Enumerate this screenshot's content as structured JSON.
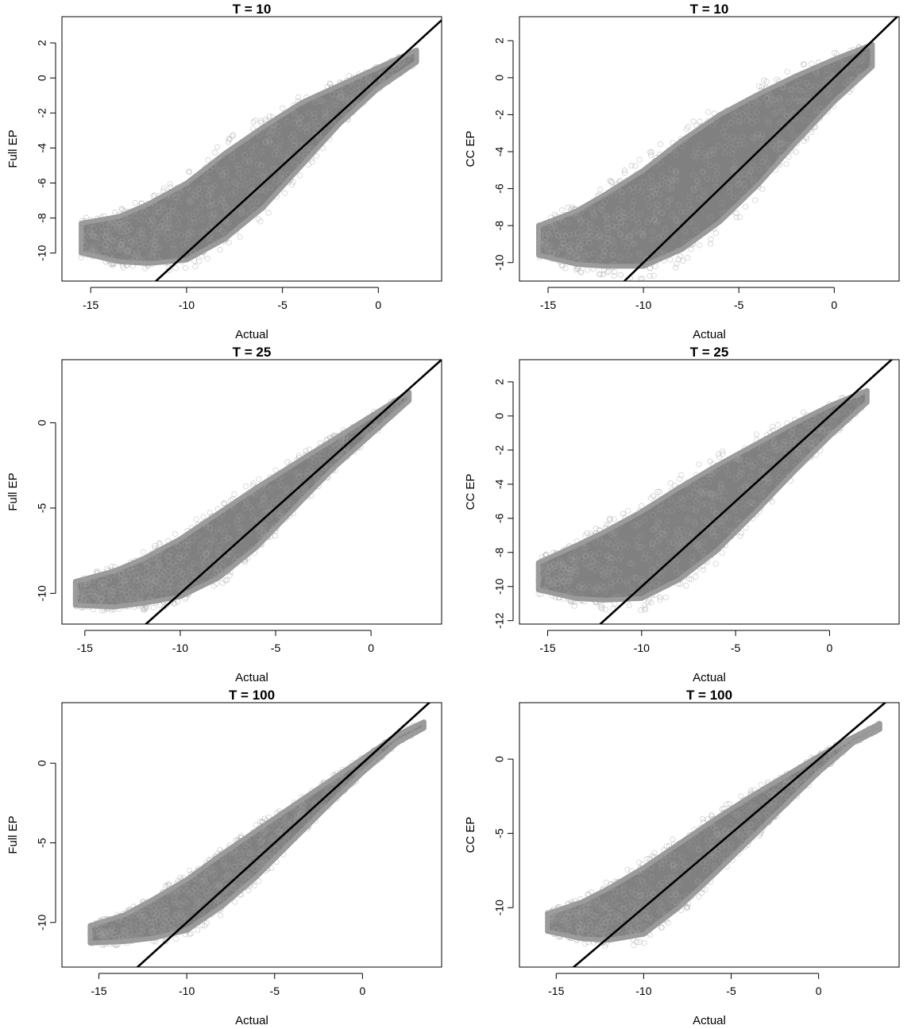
{
  "panels": [
    {
      "chart_data": {
        "type": "scatter",
        "title": "T = 10",
        "xlabel": "Actual",
        "ylabel": "Full EP",
        "xlim": [
          -16.5,
          3.3
        ],
        "ylim": [
          -11.6,
          3.5
        ],
        "xticks": [
          -15,
          -10,
          -5,
          0
        ],
        "yticks": [
          -10,
          -8,
          -6,
          -4,
          -2,
          0,
          2
        ],
        "reference_line": {
          "slope": 1,
          "intercept": 0
        },
        "point_color": "#808080",
        "density_upper": [
          [
            -15.5,
            -8.3
          ],
          [
            -13.5,
            -7.9
          ],
          [
            -12,
            -7.2
          ],
          [
            -10,
            -6.0
          ],
          [
            -8,
            -4.3
          ],
          [
            -6,
            -2.8
          ],
          [
            -4,
            -1.4
          ],
          [
            -2,
            -0.4
          ],
          [
            0,
            0.6
          ],
          [
            2,
            1.6
          ]
        ],
        "density_lower": [
          [
            -15.5,
            -10.0
          ],
          [
            -13.5,
            -10.5
          ],
          [
            -12,
            -10.6
          ],
          [
            -10,
            -10.4
          ],
          [
            -8,
            -9.2
          ],
          [
            -6,
            -7.4
          ],
          [
            -4,
            -5.0
          ],
          [
            -2,
            -2.6
          ],
          [
            0,
            -0.6
          ],
          [
            2,
            0.9
          ]
        ]
      }
    },
    {
      "chart_data": {
        "type": "scatter",
        "title": "T = 10",
        "xlabel": "Actual",
        "ylabel": "CC EP",
        "xlim": [
          -16.5,
          3.4
        ],
        "ylim": [
          -11.0,
          3.3
        ],
        "xticks": [
          -15,
          -10,
          -5,
          0
        ],
        "yticks": [
          -10,
          -8,
          -6,
          -4,
          -2,
          0,
          2
        ],
        "reference_line": {
          "slope": 1,
          "intercept": 0
        },
        "point_color": "#808080",
        "density_upper": [
          [
            -15.5,
            -8.0
          ],
          [
            -13.5,
            -7.2
          ],
          [
            -12,
            -6.3
          ],
          [
            -10,
            -5.0
          ],
          [
            -8,
            -3.4
          ],
          [
            -6,
            -2.0
          ],
          [
            -4,
            -0.9
          ],
          [
            -2,
            0.1
          ],
          [
            0,
            1.0
          ],
          [
            2,
            1.8
          ]
        ],
        "density_lower": [
          [
            -15.5,
            -9.6
          ],
          [
            -13.5,
            -10.1
          ],
          [
            -12,
            -10.2
          ],
          [
            -10,
            -10.2
          ],
          [
            -8,
            -9.3
          ],
          [
            -6,
            -7.8
          ],
          [
            -4,
            -5.8
          ],
          [
            -2,
            -3.5
          ],
          [
            0,
            -1.3
          ],
          [
            2,
            0.6
          ]
        ]
      }
    },
    {
      "chart_data": {
        "type": "scatter",
        "title": "T = 25",
        "xlabel": "Actual",
        "ylabel": "Full EP",
        "xlim": [
          -16.2,
          3.7
        ],
        "ylim": [
          -11.8,
          3.7
        ],
        "xticks": [
          -15,
          -10,
          -5,
          0
        ],
        "yticks": [
          -10,
          -5,
          0
        ],
        "reference_line": {
          "slope": 1,
          "intercept": 0
        },
        "point_color": "#808080",
        "density_upper": [
          [
            -15.5,
            -9.3
          ],
          [
            -13.5,
            -8.7
          ],
          [
            -12,
            -8.0
          ],
          [
            -10,
            -6.8
          ],
          [
            -8,
            -5.3
          ],
          [
            -6,
            -3.8
          ],
          [
            -4,
            -2.4
          ],
          [
            -2,
            -1.0
          ],
          [
            0,
            0.4
          ],
          [
            2,
            1.8
          ]
        ],
        "density_lower": [
          [
            -15.5,
            -10.7
          ],
          [
            -13.5,
            -10.8
          ],
          [
            -12,
            -10.6
          ],
          [
            -10,
            -10.2
          ],
          [
            -8,
            -9.1
          ],
          [
            -6,
            -7.3
          ],
          [
            -4,
            -5.0
          ],
          [
            -2,
            -2.7
          ],
          [
            0,
            -0.7
          ],
          [
            2,
            1.3
          ]
        ]
      }
    },
    {
      "chart_data": {
        "type": "scatter",
        "title": "T = 25",
        "xlabel": "Actual",
        "ylabel": "CC EP",
        "xlim": [
          -16.5,
          3.7
        ],
        "ylim": [
          -12.2,
          3.3
        ],
        "xticks": [
          -15,
          -10,
          -5,
          0
        ],
        "yticks": [
          -12,
          -10,
          -8,
          -6,
          -4,
          -2,
          0,
          2
        ],
        "reference_line": {
          "slope": 1,
          "intercept": 0
        },
        "point_color": "#808080",
        "density_upper": [
          [
            -15.5,
            -8.6
          ],
          [
            -13.5,
            -7.6
          ],
          [
            -12,
            -6.8
          ],
          [
            -10,
            -5.6
          ],
          [
            -8,
            -4.2
          ],
          [
            -6,
            -2.9
          ],
          [
            -4,
            -1.7
          ],
          [
            -2,
            -0.5
          ],
          [
            0,
            0.6
          ],
          [
            2,
            1.5
          ]
        ],
        "density_lower": [
          [
            -15.5,
            -10.2
          ],
          [
            -13.5,
            -10.7
          ],
          [
            -12,
            -10.8
          ],
          [
            -10,
            -10.7
          ],
          [
            -8,
            -9.6
          ],
          [
            -6,
            -7.9
          ],
          [
            -4,
            -5.7
          ],
          [
            -2,
            -3.4
          ],
          [
            0,
            -1.2
          ],
          [
            2,
            0.8
          ]
        ]
      }
    },
    {
      "chart_data": {
        "type": "scatter",
        "title": "T = 100",
        "xlabel": "Actual",
        "ylabel": "Full EP",
        "xlim": [
          -17.1,
          4.5
        ],
        "ylim": [
          -12.8,
          3.8
        ],
        "xticks": [
          -15,
          -10,
          -5,
          0
        ],
        "yticks": [
          -10,
          -5,
          0
        ],
        "reference_line": {
          "slope": 1,
          "intercept": 0
        },
        "point_color": "#808080",
        "density_upper": [
          [
            -15.5,
            -10.2
          ],
          [
            -13.5,
            -9.5
          ],
          [
            -12,
            -8.6
          ],
          [
            -10,
            -7.3
          ],
          [
            -8,
            -5.7
          ],
          [
            -6,
            -4.2
          ],
          [
            -4,
            -2.7
          ],
          [
            -2,
            -1.2
          ],
          [
            0,
            0.3
          ],
          [
            2,
            1.8
          ],
          [
            3.5,
            2.6
          ]
        ],
        "density_lower": [
          [
            -15.5,
            -11.3
          ],
          [
            -13.5,
            -11.2
          ],
          [
            -12,
            -11.0
          ],
          [
            -10,
            -10.5
          ],
          [
            -8,
            -9.0
          ],
          [
            -6,
            -7.1
          ],
          [
            -4,
            -4.9
          ],
          [
            -2,
            -2.7
          ],
          [
            0,
            -0.6
          ],
          [
            2,
            1.3
          ],
          [
            3.5,
            2.2
          ]
        ]
      }
    },
    {
      "chart_data": {
        "type": "scatter",
        "title": "T = 100",
        "xlabel": "Actual",
        "ylabel": "CC EP",
        "xlim": [
          -17.1,
          4.6
        ],
        "ylim": [
          -14.0,
          3.8
        ],
        "xticks": [
          -15,
          -10,
          -5,
          0
        ],
        "yticks": [
          -10,
          -5,
          0
        ],
        "reference_line": {
          "slope": 1,
          "intercept": 0
        },
        "point_color": "#808080",
        "density_upper": [
          [
            -15.5,
            -10.4
          ],
          [
            -13.5,
            -9.6
          ],
          [
            -12,
            -8.7
          ],
          [
            -10,
            -7.3
          ],
          [
            -8,
            -5.7
          ],
          [
            -6,
            -4.1
          ],
          [
            -4,
            -2.6
          ],
          [
            -2,
            -1.2
          ],
          [
            0,
            0.2
          ],
          [
            2,
            1.5
          ],
          [
            3.5,
            2.4
          ]
        ],
        "density_lower": [
          [
            -15.5,
            -11.6
          ],
          [
            -13.5,
            -12.1
          ],
          [
            -12,
            -12.2
          ],
          [
            -10,
            -11.8
          ],
          [
            -8,
            -10.0
          ],
          [
            -6,
            -7.8
          ],
          [
            -4,
            -5.5
          ],
          [
            -2,
            -3.2
          ],
          [
            0,
            -0.9
          ],
          [
            2,
            1.1
          ],
          [
            3.5,
            2.0
          ]
        ]
      }
    }
  ]
}
